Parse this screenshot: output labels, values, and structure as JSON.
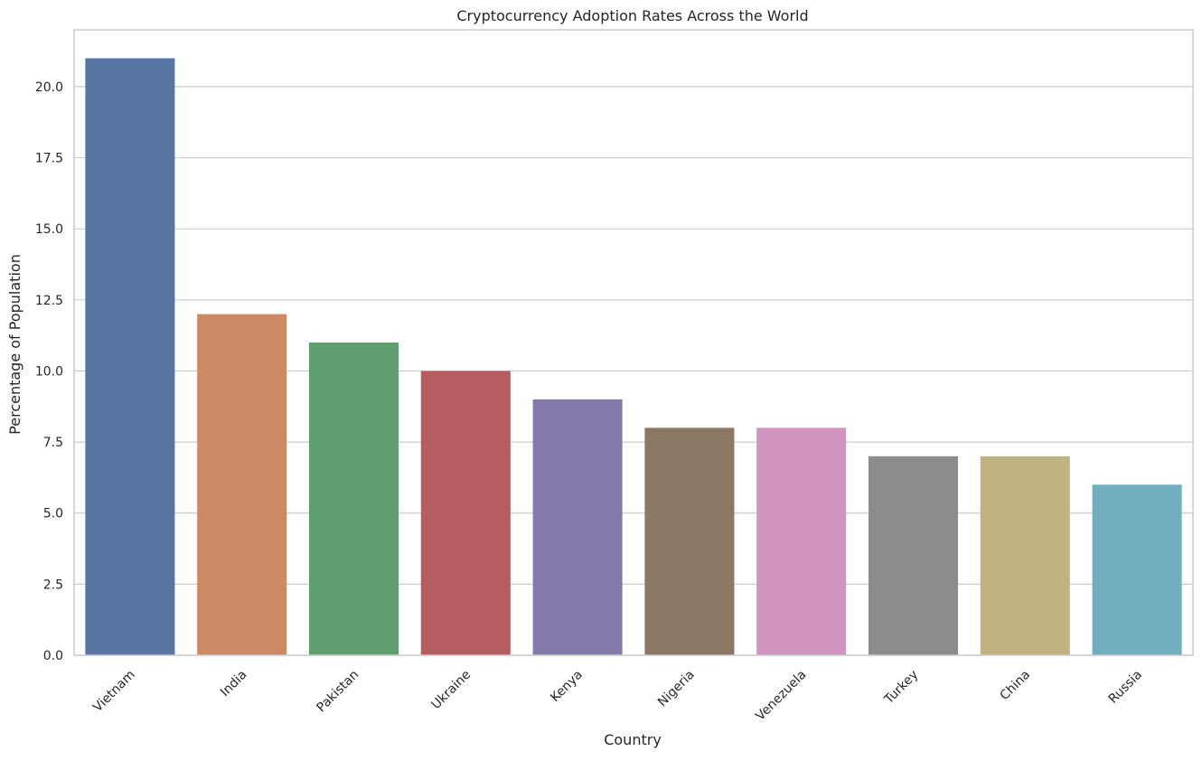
{
  "chart_data": {
    "type": "bar",
    "title": "Cryptocurrency Adoption Rates Across the World",
    "xlabel": "Country",
    "ylabel": "Percentage of Population",
    "categories": [
      "Vietnam",
      "India",
      "Pakistan",
      "Ukraine",
      "Kenya",
      "Nigeria",
      "Venezuela",
      "Turkey",
      "China",
      "Russia"
    ],
    "values": [
      21,
      12,
      11,
      10,
      9,
      8,
      8,
      7,
      7,
      6
    ],
    "colors": [
      "#5875a4",
      "#cc8963",
      "#5f9e6e",
      "#b55d60",
      "#857aab",
      "#8d7866",
      "#d095bf",
      "#8c8c8c",
      "#c1b37f",
      "#71aec0"
    ],
    "ylim": [
      0,
      22
    ],
    "yticks": [
      "0.0",
      "2.5",
      "5.0",
      "7.5",
      "10.0",
      "12.5",
      "15.0",
      "17.5",
      "20.0"
    ],
    "grid": true,
    "legend": "none"
  }
}
